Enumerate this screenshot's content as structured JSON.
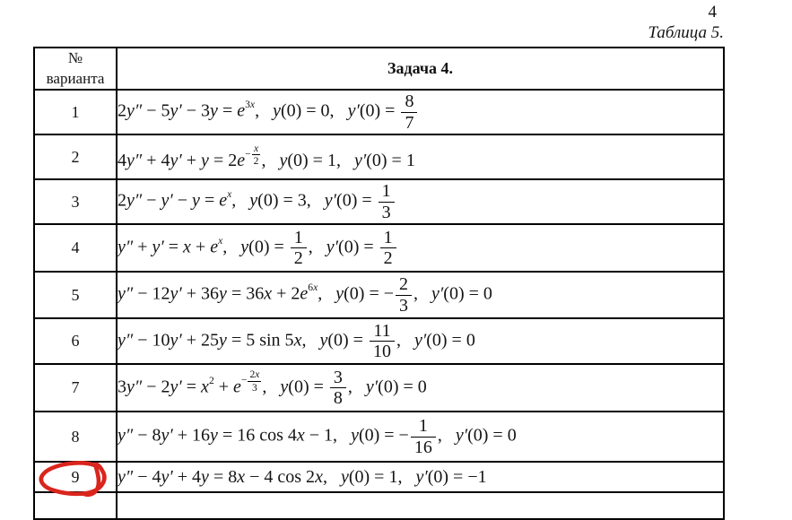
{
  "page": {
    "number": "4",
    "caption": "Таблица 5."
  },
  "table": {
    "header": {
      "variant_line1": "№",
      "variant_line2": "варианта",
      "task": "Задача 4."
    },
    "rows": [
      {
        "variant": "1",
        "eq": [
          {
            "r": "2"
          },
          {
            "i": "y″"
          },
          {
            "r": " − 5"
          },
          {
            "i": "y′"
          },
          {
            "r": " − 3"
          },
          {
            "i": "y"
          },
          {
            "r": " = "
          },
          {
            "i": "e"
          },
          {
            "sup": [
              {
                "r": "3"
              },
              {
                "i": "x"
              }
            ]
          },
          {
            "r": ",   "
          },
          {
            "i": "y"
          },
          {
            "r": "(0) = 0,   "
          },
          {
            "i": "y′"
          },
          {
            "r": "(0) = "
          },
          {
            "frac": {
              "n": [
                {
                  "r": "8"
                }
              ],
              "d": [
                {
                  "r": "7"
                }
              ]
            }
          }
        ]
      },
      {
        "variant": "2",
        "eq": [
          {
            "r": "4"
          },
          {
            "i": "y″"
          },
          {
            "r": " + 4"
          },
          {
            "i": "y′"
          },
          {
            "r": " + "
          },
          {
            "i": "y"
          },
          {
            "r": " = 2"
          },
          {
            "i": "e"
          },
          {
            "sup": [
              {
                "r": "−"
              },
              {
                "frac": {
                  "n": [
                    {
                      "i": "x"
                    }
                  ],
                  "d": [
                    {
                      "r": "2"
                    }
                  ]
                }
              }
            ]
          },
          {
            "r": ",   "
          },
          {
            "i": "y"
          },
          {
            "r": "(0) = 1,   "
          },
          {
            "i": "y′"
          },
          {
            "r": "(0) = 1"
          }
        ]
      },
      {
        "variant": "3",
        "eq": [
          {
            "r": "2"
          },
          {
            "i": "y″"
          },
          {
            "r": " − "
          },
          {
            "i": "y′"
          },
          {
            "r": " − "
          },
          {
            "i": "y"
          },
          {
            "r": " = "
          },
          {
            "i": "e"
          },
          {
            "sup": [
              {
                "i": "x"
              }
            ]
          },
          {
            "r": ",   "
          },
          {
            "i": "y"
          },
          {
            "r": "(0) = 3,   "
          },
          {
            "i": "y′"
          },
          {
            "r": "(0) = "
          },
          {
            "frac": {
              "n": [
                {
                  "r": "1"
                }
              ],
              "d": [
                {
                  "r": "3"
                }
              ]
            }
          }
        ]
      },
      {
        "variant": "4",
        "eq": [
          {
            "i": "y″"
          },
          {
            "r": " + "
          },
          {
            "i": "y′"
          },
          {
            "r": " = "
          },
          {
            "i": "x"
          },
          {
            "r": " + "
          },
          {
            "i": "e"
          },
          {
            "sup": [
              {
                "i": "x"
              }
            ]
          },
          {
            "r": ",   "
          },
          {
            "i": "y"
          },
          {
            "r": "(0) = "
          },
          {
            "frac": {
              "n": [
                {
                  "r": "1"
                }
              ],
              "d": [
                {
                  "r": "2"
                }
              ]
            }
          },
          {
            "r": ",   "
          },
          {
            "i": "y′"
          },
          {
            "r": "(0) = "
          },
          {
            "frac": {
              "n": [
                {
                  "r": "1"
                }
              ],
              "d": [
                {
                  "r": "2"
                }
              ]
            }
          }
        ]
      },
      {
        "variant": "5",
        "eq": [
          {
            "i": "y″"
          },
          {
            "r": " − 12"
          },
          {
            "i": "y′"
          },
          {
            "r": " + 36"
          },
          {
            "i": "y"
          },
          {
            "r": " = 36"
          },
          {
            "i": "x"
          },
          {
            "r": " + 2"
          },
          {
            "i": "e"
          },
          {
            "sup": [
              {
                "r": "6"
              },
              {
                "i": "x"
              }
            ]
          },
          {
            "r": ",   "
          },
          {
            "i": "y"
          },
          {
            "r": "(0) = −"
          },
          {
            "frac": {
              "n": [
                {
                  "r": "2"
                }
              ],
              "d": [
                {
                  "r": "3"
                }
              ]
            }
          },
          {
            "r": ",   "
          },
          {
            "i": "y′"
          },
          {
            "r": "(0) = 0"
          }
        ]
      },
      {
        "variant": "6",
        "eq": [
          {
            "i": "y″"
          },
          {
            "r": " − 10"
          },
          {
            "i": "y′"
          },
          {
            "r": " + 25"
          },
          {
            "i": "y"
          },
          {
            "r": " = 5 sin 5"
          },
          {
            "i": "x"
          },
          {
            "r": ",   "
          },
          {
            "i": "y"
          },
          {
            "r": "(0) = "
          },
          {
            "frac": {
              "n": [
                {
                  "r": "11"
                }
              ],
              "d": [
                {
                  "r": "10"
                }
              ]
            }
          },
          {
            "r": ",   "
          },
          {
            "i": "y′"
          },
          {
            "r": "(0) = 0"
          }
        ]
      },
      {
        "variant": "7",
        "eq": [
          {
            "r": "3"
          },
          {
            "i": "y″"
          },
          {
            "r": " − 2"
          },
          {
            "i": "y′"
          },
          {
            "r": " = "
          },
          {
            "i": "x"
          },
          {
            "sup": [
              {
                "r": "2"
              }
            ]
          },
          {
            "r": " + "
          },
          {
            "i": "e"
          },
          {
            "sup": [
              {
                "r": "−"
              },
              {
                "frac": {
                  "n": [
                    {
                      "r": "2"
                    },
                    {
                      "i": "x"
                    }
                  ],
                  "d": [
                    {
                      "r": "3"
                    }
                  ]
                }
              }
            ]
          },
          {
            "r": ",   "
          },
          {
            "i": "y"
          },
          {
            "r": "(0) = "
          },
          {
            "frac": {
              "n": [
                {
                  "r": "3"
                }
              ],
              "d": [
                {
                  "r": "8"
                }
              ]
            }
          },
          {
            "r": ",   "
          },
          {
            "i": "y′"
          },
          {
            "r": "(0) = 0"
          }
        ]
      },
      {
        "variant": "8",
        "eq": [
          {
            "i": "y″"
          },
          {
            "r": " − 8"
          },
          {
            "i": "y′"
          },
          {
            "r": " + 16"
          },
          {
            "i": "y"
          },
          {
            "r": " = 16 cos 4"
          },
          {
            "i": "x"
          },
          {
            "r": " − 1,   "
          },
          {
            "i": "y"
          },
          {
            "r": "(0) = −"
          },
          {
            "frac": {
              "n": [
                {
                  "r": "1"
                }
              ],
              "d": [
                {
                  "r": "16"
                }
              ]
            }
          },
          {
            "r": ",   "
          },
          {
            "i": "y′"
          },
          {
            "r": "(0) = 0"
          }
        ]
      },
      {
        "variant": "9",
        "annotated": true,
        "eq": [
          {
            "i": "y″"
          },
          {
            "r": " − 4"
          },
          {
            "i": "y′"
          },
          {
            "r": " + 4"
          },
          {
            "i": "y"
          },
          {
            "r": " = 8"
          },
          {
            "i": "x"
          },
          {
            "r": " − 4 cos 2"
          },
          {
            "i": "x"
          },
          {
            "r": ",   "
          },
          {
            "i": "y"
          },
          {
            "r": "(0) = 1,   "
          },
          {
            "i": "y′"
          },
          {
            "r": "(0) = −1"
          }
        ]
      }
    ]
  },
  "annotation": {
    "shape": "hand-drawn-circle",
    "target_variant": "9",
    "color": "#da251d"
  }
}
